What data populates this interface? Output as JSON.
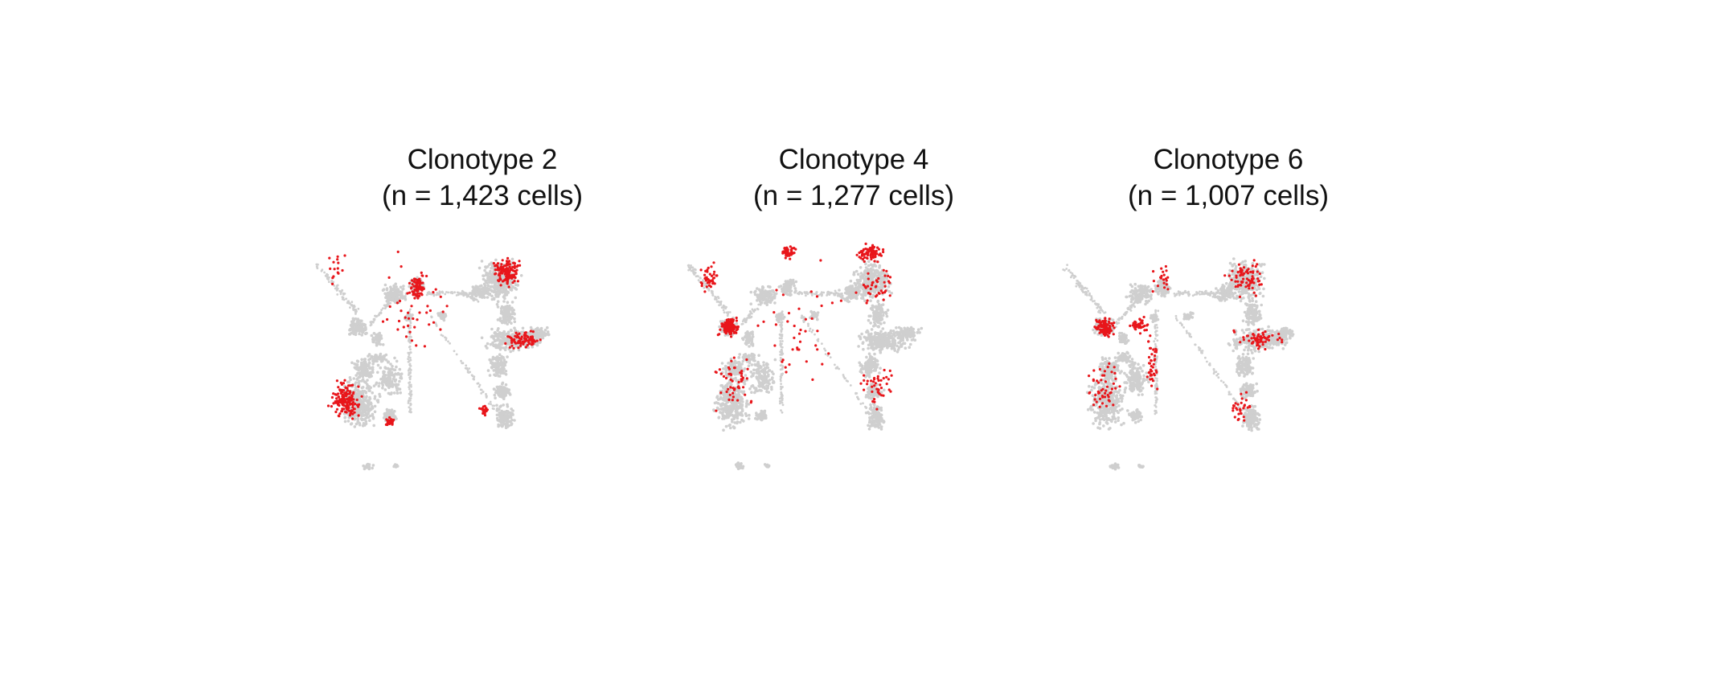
{
  "colors": {
    "background_cells": "#cfcfcf",
    "highlighted_cells": "#e8161b",
    "title_text": "#111111"
  },
  "chart_data": [
    {
      "type": "scatter",
      "title": "Clonotype 2",
      "subtitle": "(n = 1,423 cells)",
      "xlabel": "",
      "ylabel": "",
      "axes_visible": false,
      "grid": false,
      "legend": "none",
      "series": [
        {
          "role": "all cells",
          "color": "#cfcfcf"
        },
        {
          "role": "clonotype cells",
          "color": "#e8161b",
          "n": 1423,
          "dense_regions": [
            "far-left lower lobe",
            "upper-middle cluster",
            "upper-right lobe",
            "right arm"
          ]
        }
      ]
    },
    {
      "type": "scatter",
      "title": "Clonotype 4",
      "subtitle": "(n = 1,277 cells)",
      "xlabel": "",
      "ylabel": "",
      "axes_visible": false,
      "grid": false,
      "legend": "none",
      "series": [
        {
          "role": "all cells",
          "color": "#cfcfcf"
        },
        {
          "role": "clonotype cells",
          "color": "#e8161b",
          "n": 1277,
          "dense_regions": [
            "left arm",
            "left middle cluster",
            "upper-middle cluster",
            "upper-right lobe"
          ]
        }
      ]
    },
    {
      "type": "scatter",
      "title": "Clonotype 6",
      "subtitle": "(n = 1,007 cells)",
      "xlabel": "",
      "ylabel": "",
      "axes_visible": false,
      "grid": false,
      "legend": "none",
      "series": [
        {
          "role": "all cells",
          "color": "#cfcfcf"
        },
        {
          "role": "clonotype cells",
          "color": "#e8161b",
          "n": 1007,
          "dense_regions": [
            "left middle cluster",
            "central bridge",
            "upper-right lobe",
            "right arm"
          ]
        }
      ]
    }
  ]
}
